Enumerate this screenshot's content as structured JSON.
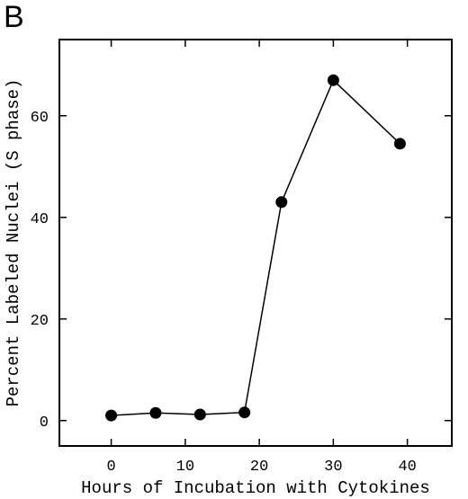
{
  "panel_label": "B",
  "chart_data": {
    "type": "line",
    "title": "",
    "xlabel": "Hours of Incubation with Cytokines",
    "ylabel": "Percent Labeled Nuclei (S phase)",
    "xlim": [
      -7,
      46
    ],
    "ylim": [
      -5,
      75
    ],
    "xticks": [
      0,
      10,
      20,
      30,
      40
    ],
    "yticks": [
      0,
      20,
      40,
      60
    ],
    "grid": false,
    "series": [
      {
        "x": [
          0,
          6,
          12,
          18,
          23,
          30,
          39
        ],
        "y": [
          1.0,
          1.5,
          1.2,
          1.6,
          43,
          67,
          54.5
        ],
        "marker": "filled-circle",
        "color": "#000000"
      }
    ]
  }
}
